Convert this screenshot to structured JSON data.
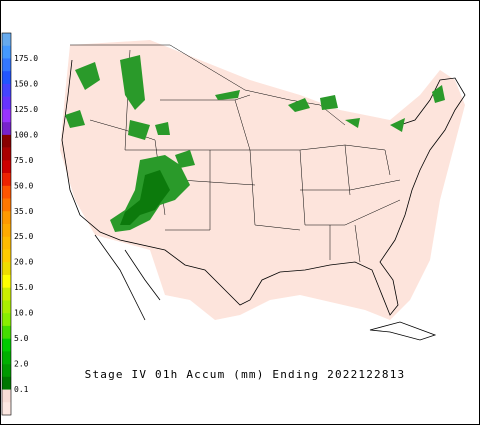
{
  "title": "Stage IV 01h Accum (mm) Ending 2022122813",
  "colorbar": {
    "labels": [
      "175.0",
      "150.0",
      "125.0",
      "100.0",
      "75.0",
      "50.0",
      "35.0",
      "25.0",
      "20.0",
      "15.0",
      "10.0",
      "5.0",
      "2.0",
      "0.1"
    ],
    "colors": [
      "#66aaee",
      "#4499ff",
      "#3377ff",
      "#2255ff",
      "#4444ff",
      "#6633ff",
      "#9933ff",
      "#7722cc",
      "#880000",
      "#aa0000",
      "#cc0000",
      "#ee2200",
      "#ff5500",
      "#ff7700",
      "#ff9900",
      "#ffaa00",
      "#ffbb00",
      "#ffcc00",
      "#eedd00",
      "#ffff00",
      "#ccee00",
      "#aaee00",
      "#88ee00",
      "#44dd00",
      "#00cc00",
      "#00b000",
      "#009900",
      "#007700",
      "#f8ddd6",
      "#fde8e2"
    ]
  }
}
